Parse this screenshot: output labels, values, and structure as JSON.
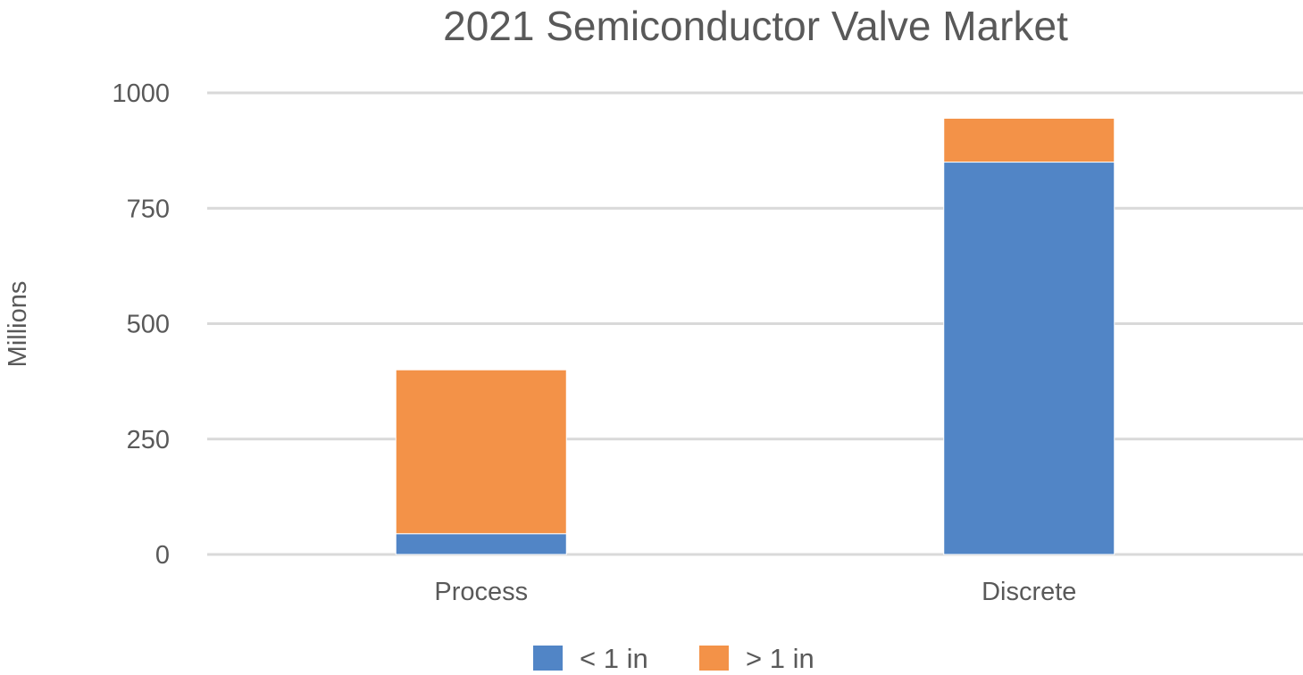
{
  "chart_data": {
    "type": "bar",
    "stacked": true,
    "title": "2021 Semiconductor Valve Market",
    "xlabel": "",
    "ylabel": "Millions",
    "categories": [
      "Process",
      "Discrete"
    ],
    "series": [
      {
        "name": "< 1 in",
        "values": [
          45,
          850
        ],
        "color": "#5185c6"
      },
      {
        "name": "> 1 in",
        "values": [
          355,
          95
        ],
        "color": "#f39248"
      }
    ],
    "ylim": [
      0,
      1000
    ],
    "yticks": [
      0,
      250,
      500,
      750,
      1000
    ],
    "grid": true,
    "legend": "bottom"
  }
}
